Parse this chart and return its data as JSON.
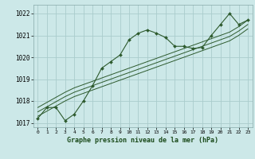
{
  "title": "Graphe pression niveau de la mer (hPa)",
  "bg_color": "#cce8e8",
  "grid_color": "#aacccc",
  "line_color": "#2d5a2d",
  "marker_color": "#2d5a2d",
  "xlim": [
    -0.5,
    23.5
  ],
  "ylim": [
    1016.8,
    1022.4
  ],
  "yticks": [
    1017,
    1018,
    1019,
    1020,
    1021,
    1022
  ],
  "xticks": [
    0,
    1,
    2,
    3,
    4,
    5,
    6,
    7,
    8,
    9,
    10,
    11,
    12,
    13,
    14,
    15,
    16,
    17,
    18,
    19,
    20,
    21,
    22,
    23
  ],
  "series": [
    {
      "x": [
        0,
        1,
        2,
        3,
        4,
        5,
        6,
        7,
        8,
        9,
        10,
        11,
        12,
        13,
        14,
        15,
        16,
        17,
        18,
        19,
        20,
        21,
        22,
        23
      ],
      "y": [
        1017.2,
        1017.7,
        1017.7,
        1017.1,
        1017.4,
        1018.0,
        1018.7,
        1019.5,
        1019.8,
        1020.1,
        1020.8,
        1021.1,
        1021.25,
        1021.1,
        1020.9,
        1020.5,
        1020.5,
        1020.4,
        1020.45,
        1021.0,
        1021.5,
        1022.0,
        1021.5,
        1021.7
      ],
      "has_marker": true
    },
    {
      "x": [
        0,
        3,
        4,
        5,
        6,
        7,
        8,
        9,
        10,
        11,
        12,
        13,
        14,
        15,
        16,
        17,
        18,
        19,
        20,
        21,
        22,
        23
      ],
      "y": [
        1017.3,
        1018.0,
        1018.2,
        1018.35,
        1018.5,
        1018.65,
        1018.8,
        1018.95,
        1019.1,
        1019.25,
        1019.4,
        1019.55,
        1019.7,
        1019.85,
        1020.0,
        1020.15,
        1020.3,
        1020.45,
        1020.6,
        1020.75,
        1021.0,
        1021.3
      ],
      "has_marker": false
    },
    {
      "x": [
        0,
        3,
        4,
        5,
        6,
        7,
        8,
        9,
        10,
        11,
        12,
        13,
        14,
        15,
        16,
        17,
        18,
        19,
        20,
        21,
        22,
        23
      ],
      "y": [
        1017.5,
        1018.2,
        1018.4,
        1018.55,
        1018.7,
        1018.85,
        1019.0,
        1019.15,
        1019.3,
        1019.45,
        1019.6,
        1019.75,
        1019.9,
        1020.05,
        1020.2,
        1020.35,
        1020.5,
        1020.65,
        1020.8,
        1020.95,
        1021.2,
        1021.5
      ],
      "has_marker": false
    },
    {
      "x": [
        0,
        3,
        4,
        5,
        6,
        7,
        8,
        9,
        10,
        11,
        12,
        13,
        14,
        15,
        16,
        17,
        18,
        19,
        20,
        21,
        22,
        23
      ],
      "y": [
        1017.7,
        1018.4,
        1018.6,
        1018.75,
        1018.9,
        1019.05,
        1019.2,
        1019.35,
        1019.5,
        1019.65,
        1019.8,
        1019.95,
        1020.1,
        1020.25,
        1020.4,
        1020.55,
        1020.7,
        1020.85,
        1021.0,
        1021.15,
        1021.4,
        1021.7
      ],
      "has_marker": false
    }
  ]
}
